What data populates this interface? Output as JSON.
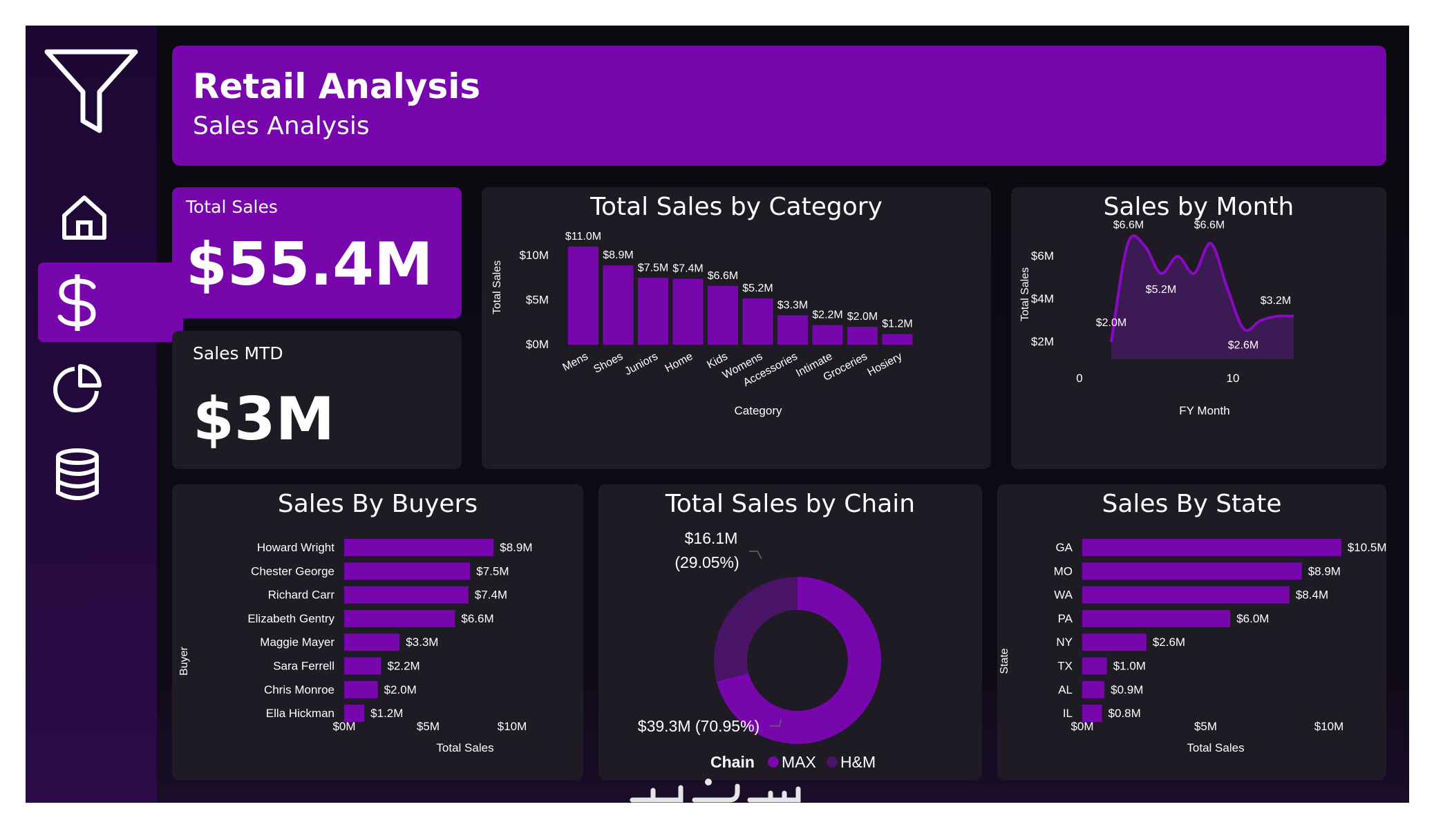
{
  "header": {
    "title": "Retail Analysis",
    "subtitle": "Sales Analysis"
  },
  "sidebar": {
    "items": [
      {
        "icon": "filter-icon"
      },
      {
        "icon": "home-icon"
      },
      {
        "icon": "dollar-icon",
        "active": true
      },
      {
        "icon": "pie-chart-icon"
      },
      {
        "icon": "database-icon"
      }
    ]
  },
  "kpis": {
    "total_sales": {
      "label": "Total Sales",
      "value": "$55.4M"
    },
    "sales_mtd": {
      "label": "Sales MTD",
      "value": "$3M"
    }
  },
  "colors": {
    "accent": "#7707ad",
    "accent_dark": "#4a1466",
    "card": "#1e1b24",
    "sidebar": "#240a3d"
  },
  "chart_data": [
    {
      "id": "category",
      "type": "bar",
      "title": "Total Sales by Category",
      "xlabel": "Category",
      "ylabel": "Total Sales",
      "ylim": [
        0,
        12
      ],
      "yticks": [
        "$0M",
        "$5M",
        "$10M"
      ],
      "categories": [
        "Mens",
        "Shoes",
        "Juniors",
        "Home",
        "Kids",
        "Womens",
        "Accessories",
        "Intimate",
        "Groceries",
        "Hosiery"
      ],
      "values": [
        11.0,
        8.9,
        7.5,
        7.4,
        6.6,
        5.2,
        3.3,
        2.2,
        2.0,
        1.2
      ],
      "labels": [
        "$11.0M",
        "$8.9M",
        "$7.5M",
        "$7.4M",
        "$6.6M",
        "$5.2M",
        "$3.3M",
        "$2.2M",
        "$2.0M",
        "$1.2M"
      ]
    },
    {
      "id": "month",
      "type": "area",
      "title": "Sales by Month",
      "xlabel": "FY Month",
      "ylabel": "Total Sales",
      "xticks": [
        "0",
        "10"
      ],
      "yticks": [
        "$2M",
        "$4M",
        "$6M"
      ],
      "x": [
        1,
        2,
        3,
        4,
        5,
        6,
        7,
        8,
        9,
        10,
        11,
        12
      ],
      "values": [
        2.0,
        6.6,
        6.5,
        5.2,
        6.0,
        5.2,
        6.6,
        4.5,
        2.6,
        3.0,
        3.2,
        3.2
      ],
      "labels": [
        "$2.0M",
        "$6.6M",
        "",
        "$5.2M",
        "",
        "",
        "$6.6M",
        "",
        "$2.6M",
        "",
        "$3.2M",
        ""
      ]
    },
    {
      "id": "buyers",
      "type": "bar",
      "orientation": "horizontal",
      "title": "Sales By Buyers",
      "xlabel": "Total Sales",
      "ylabel": "Buyer",
      "xticks": [
        "$0M",
        "$5M",
        "$10M"
      ],
      "categories": [
        "Howard Wright",
        "Chester George",
        "Richard Carr",
        "Elizabeth Gentry",
        "Maggie Mayer",
        "Sara Ferrell",
        "Chris Monroe",
        "Ella Hickman"
      ],
      "values": [
        8.9,
        7.5,
        7.4,
        6.6,
        3.3,
        2.2,
        2.0,
        1.2
      ],
      "labels": [
        "$8.9M",
        "$7.5M",
        "$7.4M",
        "$6.6M",
        "$3.3M",
        "$2.2M",
        "$2.0M",
        "$1.2M"
      ]
    },
    {
      "id": "chain",
      "type": "pie",
      "title": "Total Sales by Chain",
      "legend_title": "Chain",
      "series": [
        {
          "name": "MAX",
          "value": 39.3,
          "label": "$39.3M (70.95%)"
        },
        {
          "name": "H&M",
          "value": 16.1,
          "label_value": "$16.1M",
          "label_pct": "(29.05%)"
        }
      ]
    },
    {
      "id": "state",
      "type": "bar",
      "orientation": "horizontal",
      "title": "Sales By State",
      "xlabel": "Total Sales",
      "ylabel": "State",
      "xticks": [
        "$0M",
        "$5M",
        "$10M"
      ],
      "categories": [
        "GA",
        "MO",
        "WA",
        "PA",
        "NY",
        "TX",
        "AL",
        "IL"
      ],
      "values": [
        10.5,
        8.9,
        8.4,
        6.0,
        2.6,
        1.0,
        0.9,
        0.8
      ],
      "labels": [
        "$10.5M",
        "$8.9M",
        "$8.4M",
        "$6.0M",
        "$2.6M",
        "$1.0M",
        "$0.9M",
        "$0.8M"
      ]
    }
  ]
}
